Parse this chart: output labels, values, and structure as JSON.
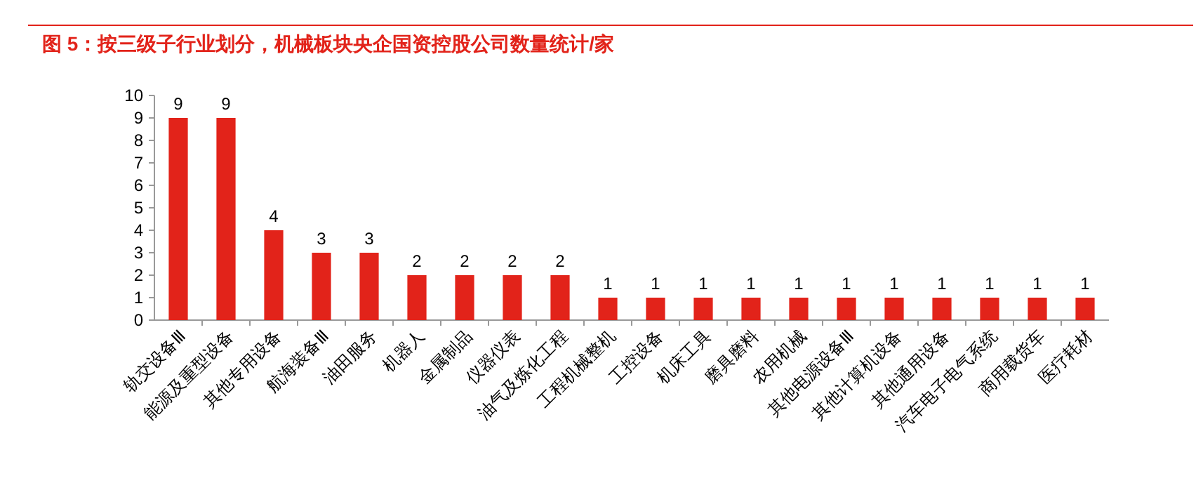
{
  "chart_data": {
    "type": "bar",
    "title": "图 5：按三级子行业划分，机械板块央企国资控股公司数量统计/家",
    "categories": [
      "轨交设备Ⅲ",
      "能源及重型设备",
      "其他专用设备",
      "航海装备Ⅲ",
      "油田服务",
      "机器人",
      "金属制品",
      "仪器仪表",
      "油气及炼化工程",
      "工程机械整机",
      "工控设备",
      "机床工具",
      "磨具磨料",
      "农用机械",
      "其他电源设备Ⅲ",
      "其他计算机设备",
      "其他通用设备",
      "汽车电子电气系统",
      "商用载货车",
      "医疗耗材"
    ],
    "values": [
      9,
      9,
      4,
      3,
      3,
      2,
      2,
      2,
      2,
      1,
      1,
      1,
      1,
      1,
      1,
      1,
      1,
      1,
      1,
      1
    ],
    "color": "#e2231a",
    "ylim": [
      0,
      10
    ],
    "yticks": [
      0,
      1,
      2,
      3,
      4,
      5,
      6,
      7,
      8,
      9,
      10
    ],
    "data_labels": true
  }
}
